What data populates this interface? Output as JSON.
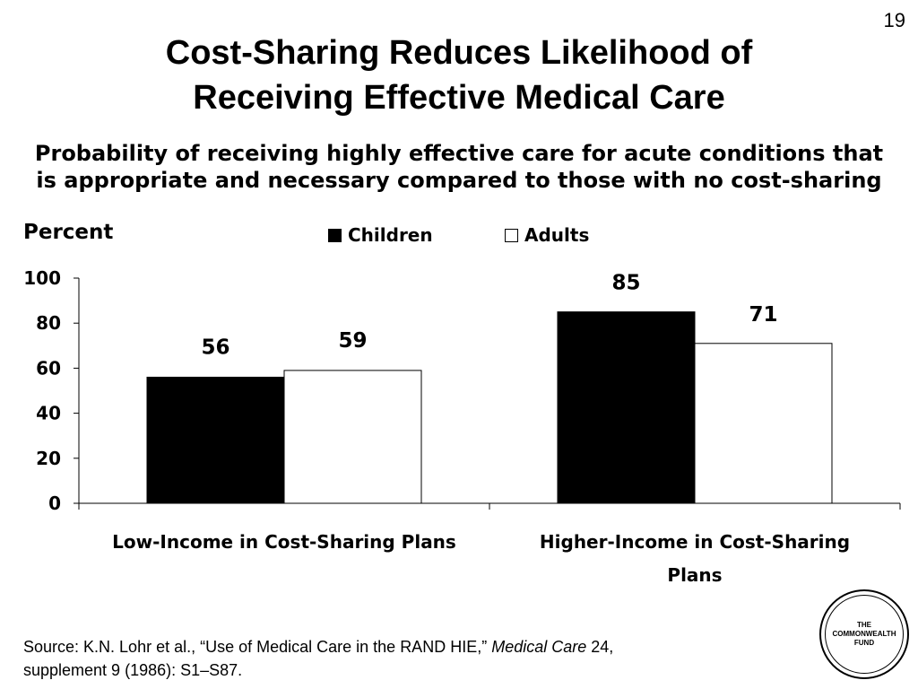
{
  "slide": {
    "number": "19",
    "title_line1": "Cost-Sharing Reduces Likelihood of",
    "title_line2": "Receiving Effective Medical Care",
    "subtitle_line1": "Probability of receiving highly effective care for acute conditions that",
    "subtitle_line2": "is appropriate and necessary compared to those with no cost-sharing"
  },
  "chart_data": {
    "type": "bar",
    "title": "",
    "ylabel": "Percent",
    "xlabel": "",
    "ylim": [
      0,
      100
    ],
    "yticks": [
      0,
      20,
      40,
      60,
      80,
      100
    ],
    "grid": false,
    "legend_position": "top-center",
    "categories": [
      [
        "Low-Income in Cost-Sharing Plans"
      ],
      [
        "Higher-Income in Cost-Sharing",
        "Plans"
      ]
    ],
    "series": [
      {
        "name": "Children",
        "values": [
          56,
          85
        ],
        "color": "#000000"
      },
      {
        "name": "Adults",
        "values": [
          59,
          71
        ],
        "color": "#ffffff"
      }
    ],
    "data_labels": [
      [
        "56",
        "85"
      ],
      [
        "59",
        "71"
      ]
    ]
  },
  "source": {
    "prefix": "Source: K.N. Lohr et al., “Use of Medical Care in the RAND HIE,” ",
    "journal": "Medical Care",
    "suffix": " 24,",
    "line2": "supplement 9 (1986): S1–S87."
  },
  "logo": {
    "line1": "THE",
    "line2": "COMMONWEALTH",
    "line3": "FUND"
  }
}
